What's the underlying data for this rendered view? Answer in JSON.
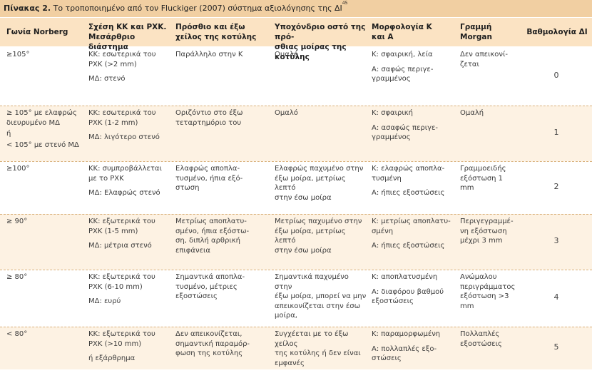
{
  "caption": {
    "label": "Πίνακας 2.",
    "text": "Το τροποποιημένο από τον Fluckiger (2007) σύστημα αξιολόγησης της ΔΙ",
    "ref": "45"
  },
  "headers": [
    "Γωνία Norberg",
    "Σχέση ΚΚ και ΡΧΚ.\nΜεσάρθριο διάστημα",
    "Πρόσθιο και έξω\nχείλος της κοτύλης",
    "Υποχόνδριο οστό της πρό-\nσθιας μοίρας της κοτύλης",
    "Μορφολογία Κ\nκαι Α",
    "Γραμμή\nMorgan",
    "Βαθμολογία ΔΙ"
  ],
  "rows": [
    {
      "angle": [
        "≥105°"
      ],
      "relation": [
        "ΚΚ: εσωτερικά του\nΡΧΚ (>2 mm)",
        "ΜΔ: στενό"
      ],
      "rim": [
        "Παράλληλο στην Κ"
      ],
      "bone": [
        "Ομαλό"
      ],
      "morph": [
        "Κ: σφαιρική, λεία",
        "Α: σαφώς περιγε-\nγραμμένος"
      ],
      "morgan": [
        "Δεν απεικονί-\nζεται"
      ],
      "score": "0"
    },
    {
      "angle": [
        "≥ 105° με ελαφρώς\nδιευρυμένο ΜΔ",
        "ή",
        "< 105° με στενό ΜΔ"
      ],
      "relation": [
        "ΚΚ: εσωτερικά του\nΡΧΚ (1-2 mm)",
        "ΜΔ: λιγότερο στενό"
      ],
      "rim": [
        "Οριζόντιο στο έξω\nτεταρτημόριο του"
      ],
      "bone": [
        "Ομαλό"
      ],
      "morph": [
        "Κ: σφαιρική",
        "Α: ασαφώς περιγε-\nγραμμένος"
      ],
      "morgan": [
        "Ομαλή"
      ],
      "score": "1"
    },
    {
      "angle": [
        "≥100°"
      ],
      "relation": [
        "ΚΚ: συμπροβάλλεται\nμε το ΡΧΚ",
        "ΜΔ: Ελαφρώς στενό"
      ],
      "rim": [
        "Ελαφρώς αποπλα-\nτυσμένο, ήπια εξό-\nστωση"
      ],
      "bone": [
        "Ελαφρώς παχυμένο στην\nέξω μοίρα, μετρίως λεπτό\nστην έσω μοίρα"
      ],
      "morph": [
        "Κ: ελαφρώς αποπλα-\nτυσμένη",
        "Α: ήπιες εξοστώσεις"
      ],
      "morgan": [
        "Γραμμοειδής\nεξόστωση 1\nmm"
      ],
      "score": "2"
    },
    {
      "angle": [
        "≥ 90°"
      ],
      "relation": [
        "ΚΚ: εξωτερικά του\nΡΧΚ (1-5 mm)",
        "ΜΔ: μέτρια στενό"
      ],
      "rim": [
        "Μετρίως αποπλατυ-\nσμένο, ήπια εξόστω-\nση, διπλή αρθρική\nεπιφάνεια"
      ],
      "bone": [
        "Μετρίως παχυμένο στην\nέξω μοίρα, μετρίως λεπτό\nστην έσω μοίρα"
      ],
      "morph": [
        "Κ: μετρίως αποπλατυ-\nσμένη",
        "Α: ήπιες εξοστώσεις"
      ],
      "morgan": [
        "Περιγεγραμμέ-\nνη εξόστωση\nμέχρι 3 mm"
      ],
      "score": "3"
    },
    {
      "angle": [
        "≥ 80°"
      ],
      "relation": [
        "ΚΚ: εξωτερικά του\nΡΧΚ (6-10 mm)",
        "ΜΔ: ευρύ"
      ],
      "rim": [
        "Σημαντικά αποπλα-\nτυσμένο, μέτριες\nεξοστώσεις"
      ],
      "bone": [
        "Σημαντικά παχυμένο στην\nέξω μοίρα, μπορεί να μην\nαπεικονίζεται στην έσω\nμοίρα,"
      ],
      "morph": [
        "Κ: αποπλατυσμένη",
        "Α: διαφόρου βαθμού\nεξοστώσεις"
      ],
      "morgan": [
        "Ανώμαλου\nπεριγράμματος\nεξόστωση >3\nmm"
      ],
      "score": "4"
    },
    {
      "angle": [
        "< 80°"
      ],
      "relation": [
        "ΚΚ: εξωτερικά του\nΡΧΚ (>10 mm)",
        "ή εξάρθρημα"
      ],
      "rim": [
        "Δεν απεικονίζεται,\nσημαντική παραμόρ-\nφωση της κοτύλης"
      ],
      "bone": [
        "Συγχέεται με το έξω χείλος\nτης κοτύλης ή δεν είναι\nεμφανές"
      ],
      "morph": [
        "Κ: παραμορφωμένη",
        "Α: πολλαπλές εξο-\nστώσεις"
      ],
      "morgan": [
        "Πολλαπλές\nεξοστώσεις"
      ],
      "score": "5"
    }
  ]
}
